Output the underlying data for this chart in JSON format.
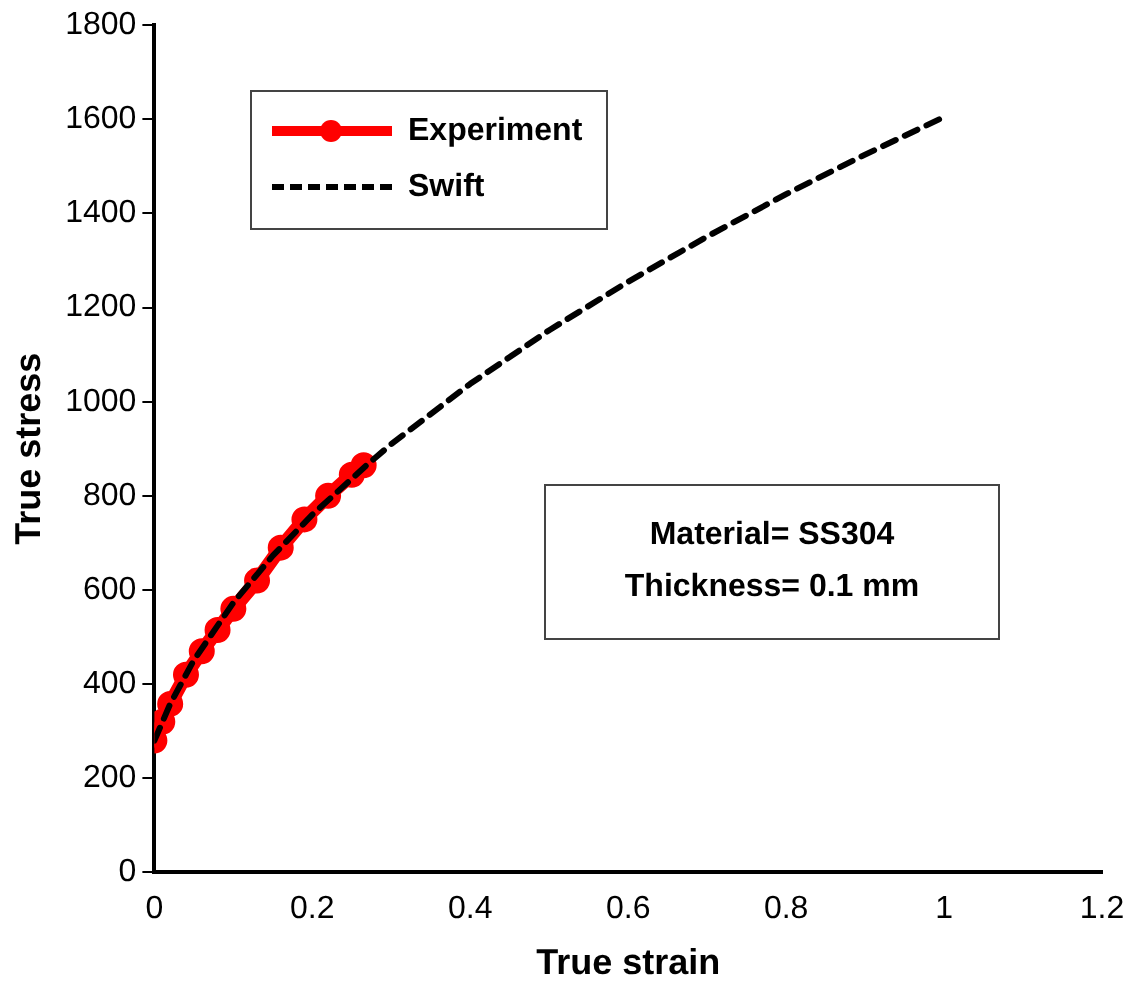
{
  "chart_data": {
    "type": "line",
    "xlabel": "True strain",
    "ylabel": "True stress",
    "xlim": [
      0,
      1.2
    ],
    "xticks": [
      0,
      0.2,
      0.4,
      0.6,
      0.8,
      1,
      1.2
    ],
    "ylim": [
      0,
      1800
    ],
    "yticks": [
      0,
      200,
      400,
      600,
      800,
      1000,
      1200,
      1400,
      1600,
      1800
    ],
    "grid": false,
    "legend": "top left",
    "annotations": [
      "Material= SS304",
      "Thickness= 0.1 mm"
    ],
    "series": [
      {
        "name": "Experiment",
        "color": "#ff0000",
        "marker": "circle",
        "line_style": "solid",
        "x": [
          0,
          0.01,
          0.02,
          0.04,
          0.06,
          0.08,
          0.1,
          0.13,
          0.16,
          0.19,
          0.22,
          0.25,
          0.265
        ],
        "values": [
          280,
          320,
          358,
          420,
          470,
          515,
          560,
          620,
          690,
          750,
          800,
          845,
          865
        ]
      },
      {
        "name": "Swift",
        "color": "#000000",
        "marker": "none",
        "line_style": "dashed",
        "x": [
          0,
          0.02,
          0.05,
          0.1,
          0.15,
          0.2,
          0.27,
          0.3,
          0.4,
          0.5,
          0.6,
          0.7,
          0.8,
          0.9,
          1
        ],
        "values": [
          280,
          358,
          451,
          573,
          673,
          760,
          867,
          910,
          1038,
          1152,
          1255,
          1351,
          1441,
          1525,
          1605
        ]
      }
    ]
  }
}
